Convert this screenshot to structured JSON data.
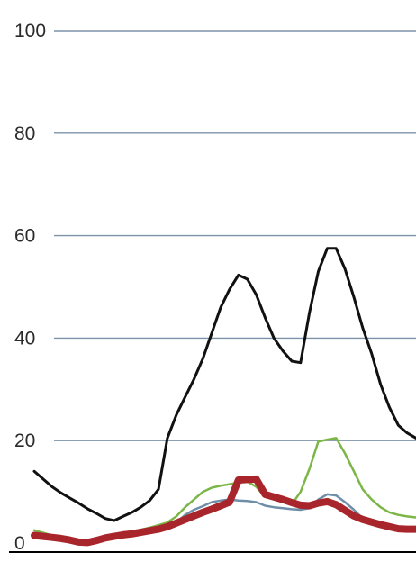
{
  "chart_data": {
    "type": "line",
    "title": "",
    "xlabel": "",
    "ylabel": "",
    "ylim": [
      0,
      100
    ],
    "yticks": [
      0,
      20,
      40,
      60,
      80,
      100
    ],
    "grid": true,
    "legend": "none",
    "x": [
      0,
      1,
      2,
      3,
      4,
      5,
      6,
      7,
      8,
      9,
      10,
      11,
      12,
      13,
      14,
      15,
      16,
      17,
      18,
      19,
      20,
      21,
      22,
      23,
      24,
      25,
      26,
      27,
      28,
      29,
      30,
      31,
      32,
      33,
      34,
      35,
      36,
      37,
      38,
      39,
      40,
      41,
      42,
      43
    ],
    "series": [
      {
        "color": "#111111",
        "width": 3,
        "values": [
          14,
          12.5,
          11,
          9.8,
          8.8,
          7.8,
          6.7,
          5.8,
          4.8,
          4.4,
          5.2,
          6.0,
          7.0,
          8.3,
          10.5,
          20.5,
          25,
          28.5,
          32,
          36,
          41,
          46,
          49.5,
          52.3,
          51.5,
          48.5,
          44,
          40,
          37.5,
          35.5,
          35.2,
          45,
          53,
          57.5,
          57.5,
          53.5,
          48,
          42,
          37,
          31,
          26.5,
          23,
          21.5,
          20.5
        ]
      },
      {
        "color": "#7bb646",
        "width": 2.5,
        "values": [
          2.5,
          2,
          1.5,
          1,
          0.8,
          0.5,
          0.5,
          1,
          1.2,
          1.5,
          2,
          2.3,
          2.6,
          3,
          3.5,
          4,
          5.2,
          7,
          8.5,
          10,
          10.8,
          11.2,
          11.5,
          11.8,
          12,
          11,
          9,
          8.5,
          8,
          7.5,
          10,
          14.5,
          19.8,
          20.2,
          20.5,
          17.5,
          14,
          10.5,
          8.5,
          7,
          6,
          5.5,
          5.2,
          5
        ]
      },
      {
        "color": "#6f8fa9",
        "width": 2.5,
        "values": [
          1.5,
          1,
          0.8,
          0.5,
          0.5,
          0.4,
          0.5,
          0.8,
          1,
          1.3,
          1.5,
          1.7,
          2,
          2.3,
          2.6,
          3,
          4,
          5.5,
          6.5,
          7.2,
          8,
          8.3,
          8.5,
          8.3,
          8.2,
          8,
          7.3,
          7,
          6.8,
          6.6,
          6.5,
          6.8,
          8.5,
          9.5,
          9.3,
          8,
          6.5,
          4.8,
          3.8,
          3.2,
          2.8,
          2.6,
          2.5,
          2.5
        ]
      },
      {
        "color": "#a8262b",
        "width": 8,
        "values": [
          1.5,
          1.3,
          1.1,
          0.9,
          0.6,
          0.2,
          0.1,
          0.5,
          1,
          1.3,
          1.6,
          1.8,
          2.1,
          2.4,
          2.7,
          3.2,
          3.9,
          4.6,
          5.3,
          6.0,
          6.6,
          7.3,
          8,
          12.3,
          12.4,
          12.5,
          9.5,
          9,
          8.5,
          7.9,
          7.4,
          7.3,
          7.8,
          8.1,
          7.5,
          6.4,
          5.3,
          4.6,
          4.1,
          3.6,
          3.2,
          2.8,
          2.7,
          2.7
        ]
      }
    ]
  }
}
